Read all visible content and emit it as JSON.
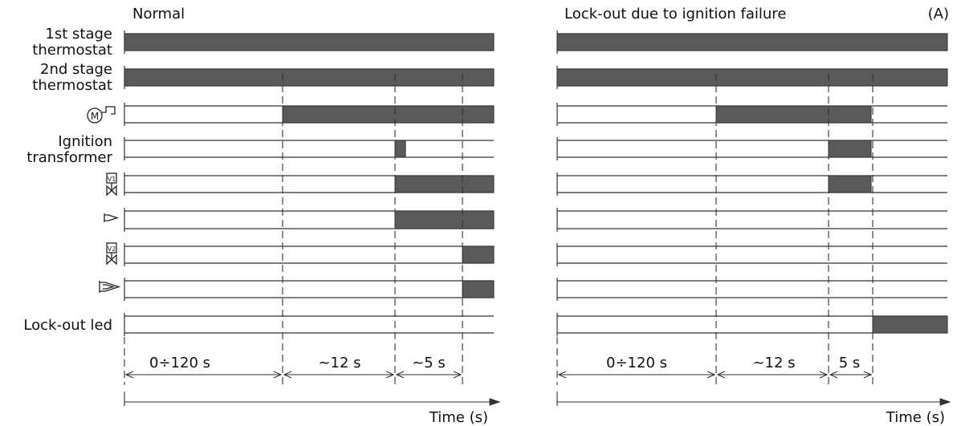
{
  "figure_label": "(A)",
  "signal_labels": {
    "stage1": [
      "1st stage",
      "thermostat"
    ],
    "stage2": [
      "2nd stage",
      "thermostat"
    ],
    "motor": "motor-icon",
    "ignition": [
      "Ignition",
      "transformer"
    ],
    "valve1": "valve-v1-icon",
    "flame1": "flame-small-icon",
    "valve2": "valve-v2-icon",
    "flame2": "flame-large-icon",
    "lockout": "Lock-out led"
  },
  "panels": [
    {
      "id": "normal",
      "title": "Normal",
      "intervals": [
        "0÷120 s",
        "~12 s",
        "~5 s"
      ],
      "time_label": "Time (s)"
    },
    {
      "id": "lockout",
      "title": "Lock-out due to ignition failure",
      "intervals": [
        "0÷120 s",
        "~12 s",
        "5 s"
      ],
      "time_label": "Time (s)"
    }
  ],
  "icon_text": {
    "motor": "M",
    "valve1": "V1",
    "valve2": "V2"
  },
  "colors": {
    "bar": "#5a5a5a",
    "line": "#333333"
  }
}
